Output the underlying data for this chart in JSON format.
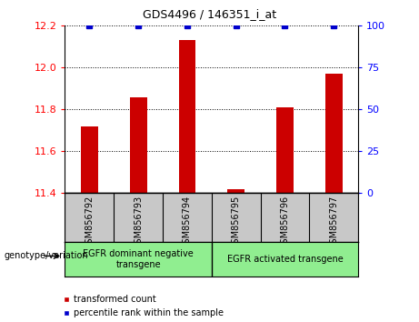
{
  "title": "GDS4496 / 146351_i_at",
  "samples": [
    "GSM856792",
    "GSM856793",
    "GSM856794",
    "GSM856795",
    "GSM856796",
    "GSM856797"
  ],
  "red_values": [
    11.72,
    11.86,
    12.13,
    11.42,
    11.81,
    11.97
  ],
  "blue_values": [
    100,
    100,
    100,
    100,
    100,
    100
  ],
  "ylim_left": [
    11.4,
    12.2
  ],
  "ylim_right": [
    0,
    100
  ],
  "yticks_left": [
    11.4,
    11.6,
    11.8,
    12.0,
    12.2
  ],
  "yticks_right": [
    0,
    25,
    50,
    75,
    100
  ],
  "groups": [
    {
      "label": "EGFR dominant negative\ntransgene",
      "samples": 3
    },
    {
      "label": "EGFR activated transgene",
      "samples": 3
    }
  ],
  "group_colors": [
    "#90EE90",
    "#90EE90"
  ],
  "group_divider_color": "#000000",
  "bar_color": "#CC0000",
  "dot_color": "#0000CC",
  "bar_width": 0.35,
  "legend_red_label": "transformed count",
  "legend_blue_label": "percentile rank within the sample",
  "genotype_label": "genotype/variation",
  "tick_area_color": "#c8c8c8",
  "plot_bg": "#ffffff",
  "title_fontsize": 9,
  "axis_fontsize": 8,
  "label_fontsize": 7,
  "legend_fontsize": 7
}
